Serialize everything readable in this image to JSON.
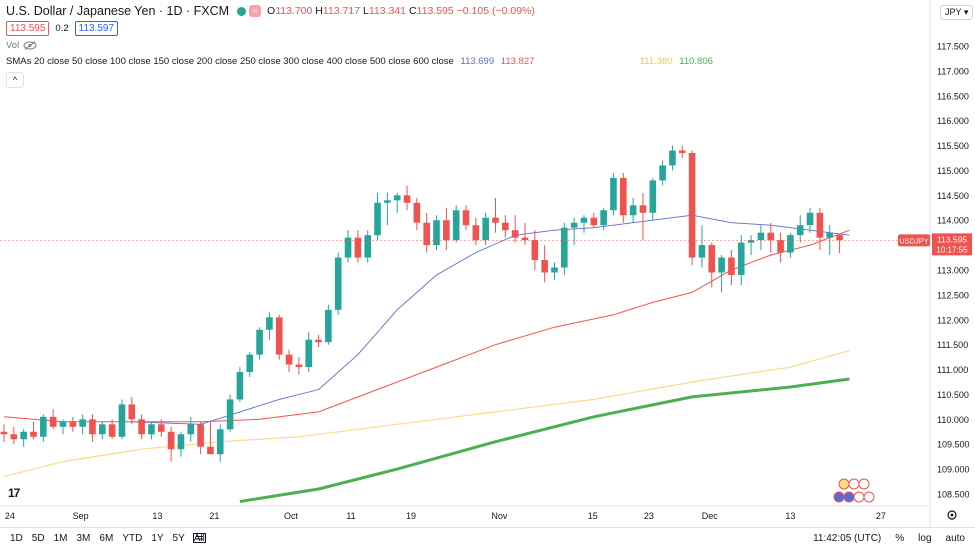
{
  "header": {
    "title": "U.S. Dollar / Japanese Yen · 1D · FXCM",
    "open_label": "O",
    "open": "113.700",
    "high_label": "H",
    "high": "113.717",
    "low_label": "L",
    "low": "113.341",
    "close_label": "C",
    "close": "113.595",
    "change": "−0.105 (−0.09%)",
    "sell_price": "113.595",
    "spread": "0.2",
    "buy_price": "113.597",
    "vol_label": "Vol",
    "sma_label": "SMAs 20 close 50 close 100 close 150 close 200 close 250 close 300 close 400 close 500 close 600 close",
    "sma_values": [
      "113.699",
      "113.827",
      "111.380",
      "110.806"
    ],
    "sma_colors": [
      "#5b6bd8",
      "#ef5350",
      "#f7dd86",
      "#4caf50"
    ],
    "collapse_symbol": "^",
    "currency": "JPY"
  },
  "price_axis": {
    "ticks": [
      "117.500",
      "117.000",
      "116.500",
      "116.000",
      "115.500",
      "115.000",
      "114.500",
      "114.000",
      "113.500",
      "113.000",
      "112.500",
      "112.000",
      "111.500",
      "111.000",
      "110.500",
      "110.000",
      "109.500",
      "109.000",
      "108.500"
    ],
    "symbol_tag": "USDJPY",
    "last_price": "113.595",
    "countdown": "10:17:55"
  },
  "time_axis": {
    "labels": [
      "24",
      "Sep",
      "13",
      "21",
      "Oct",
      "11",
      "19",
      "Nov",
      "15",
      "23",
      "Dec",
      "13",
      "27"
    ]
  },
  "bottom_bar": {
    "timeframes": [
      "1D",
      "5D",
      "1M",
      "3M",
      "6M",
      "YTD",
      "1Y",
      "5Y",
      "All"
    ],
    "time": "11:42:05 (UTC)",
    "percent": "%",
    "log": "log",
    "auto": "auto"
  },
  "logo_text": "17",
  "chart_data": {
    "type": "candlestick",
    "title": "U.S. Dollar / Japanese Yen · 1D · FXCM",
    "y_range": [
      108.3,
      117.75
    ],
    "candles": [
      {
        "o": 109.75,
        "h": 109.9,
        "l": 109.55,
        "c": 109.7
      },
      {
        "o": 109.7,
        "h": 109.85,
        "l": 109.5,
        "c": 109.6
      },
      {
        "o": 109.6,
        "h": 109.8,
        "l": 109.45,
        "c": 109.75
      },
      {
        "o": 109.75,
        "h": 109.95,
        "l": 109.6,
        "c": 109.65
      },
      {
        "o": 109.65,
        "h": 110.1,
        "l": 109.55,
        "c": 110.05
      },
      {
        "o": 110.05,
        "h": 110.2,
        "l": 109.8,
        "c": 109.85
      },
      {
        "o": 109.85,
        "h": 110.0,
        "l": 109.7,
        "c": 109.95
      },
      {
        "o": 109.95,
        "h": 110.05,
        "l": 109.75,
        "c": 109.85
      },
      {
        "o": 109.85,
        "h": 110.1,
        "l": 109.7,
        "c": 110.0
      },
      {
        "o": 110.0,
        "h": 110.1,
        "l": 109.55,
        "c": 109.7
      },
      {
        "o": 109.7,
        "h": 109.95,
        "l": 109.6,
        "c": 109.9
      },
      {
        "o": 109.9,
        "h": 110.0,
        "l": 109.6,
        "c": 109.65
      },
      {
        "o": 109.65,
        "h": 110.4,
        "l": 109.6,
        "c": 110.3
      },
      {
        "o": 110.3,
        "h": 110.45,
        "l": 109.9,
        "c": 110.0
      },
      {
        "o": 110.0,
        "h": 110.1,
        "l": 109.6,
        "c": 109.7
      },
      {
        "o": 109.7,
        "h": 109.95,
        "l": 109.6,
        "c": 109.9
      },
      {
        "o": 109.9,
        "h": 110.0,
        "l": 109.65,
        "c": 109.75
      },
      {
        "o": 109.75,
        "h": 109.85,
        "l": 109.15,
        "c": 109.4
      },
      {
        "o": 109.4,
        "h": 109.75,
        "l": 109.25,
        "c": 109.7
      },
      {
        "o": 109.7,
        "h": 110.05,
        "l": 109.55,
        "c": 109.9
      },
      {
        "o": 109.9,
        "h": 109.95,
        "l": 109.3,
        "c": 109.45
      },
      {
        "o": 109.45,
        "h": 109.95,
        "l": 109.35,
        "c": 109.3
      },
      {
        "o": 109.3,
        "h": 109.9,
        "l": 109.15,
        "c": 109.8
      },
      {
        "o": 109.8,
        "h": 110.5,
        "l": 109.75,
        "c": 110.4
      },
      {
        "o": 110.4,
        "h": 111.05,
        "l": 110.35,
        "c": 110.95
      },
      {
        "o": 110.95,
        "h": 111.35,
        "l": 110.85,
        "c": 111.3
      },
      {
        "o": 111.3,
        "h": 111.85,
        "l": 111.2,
        "c": 111.8
      },
      {
        "o": 111.8,
        "h": 112.15,
        "l": 111.6,
        "c": 112.05
      },
      {
        "o": 112.05,
        "h": 112.1,
        "l": 111.2,
        "c": 111.3
      },
      {
        "o": 111.3,
        "h": 111.4,
        "l": 110.95,
        "c": 111.1
      },
      {
        "o": 111.1,
        "h": 111.25,
        "l": 110.9,
        "c": 111.05
      },
      {
        "o": 111.05,
        "h": 111.75,
        "l": 110.95,
        "c": 111.6
      },
      {
        "o": 111.6,
        "h": 111.7,
        "l": 111.45,
        "c": 111.55
      },
      {
        "o": 111.55,
        "h": 112.3,
        "l": 111.5,
        "c": 112.2
      },
      {
        "o": 112.2,
        "h": 113.35,
        "l": 112.1,
        "c": 113.25
      },
      {
        "o": 113.25,
        "h": 113.8,
        "l": 113.15,
        "c": 113.65
      },
      {
        "o": 113.65,
        "h": 113.8,
        "l": 113.15,
        "c": 113.25
      },
      {
        "o": 113.25,
        "h": 113.8,
        "l": 113.15,
        "c": 113.7
      },
      {
        "o": 113.7,
        "h": 114.55,
        "l": 113.6,
        "c": 114.35
      },
      {
        "o": 114.35,
        "h": 114.55,
        "l": 113.9,
        "c": 114.4
      },
      {
        "o": 114.4,
        "h": 114.55,
        "l": 114.15,
        "c": 114.5
      },
      {
        "o": 114.5,
        "h": 114.7,
        "l": 114.2,
        "c": 114.35
      },
      {
        "o": 114.35,
        "h": 114.45,
        "l": 113.8,
        "c": 113.95
      },
      {
        "o": 113.95,
        "h": 114.15,
        "l": 113.35,
        "c": 113.5
      },
      {
        "o": 113.5,
        "h": 114.1,
        "l": 113.4,
        "c": 114.0
      },
      {
        "o": 114.0,
        "h": 114.25,
        "l": 113.4,
        "c": 113.6
      },
      {
        "o": 113.6,
        "h": 114.3,
        "l": 113.55,
        "c": 114.2
      },
      {
        "o": 114.2,
        "h": 114.3,
        "l": 113.8,
        "c": 113.9
      },
      {
        "o": 113.9,
        "h": 114.05,
        "l": 113.5,
        "c": 113.6
      },
      {
        "o": 113.6,
        "h": 114.15,
        "l": 113.5,
        "c": 114.05
      },
      {
        "o": 114.05,
        "h": 114.45,
        "l": 113.75,
        "c": 113.95
      },
      {
        "o": 113.95,
        "h": 114.1,
        "l": 113.65,
        "c": 113.8
      },
      {
        "o": 113.8,
        "h": 114.1,
        "l": 113.55,
        "c": 113.65
      },
      {
        "o": 113.65,
        "h": 113.95,
        "l": 113.5,
        "c": 113.6
      },
      {
        "o": 113.6,
        "h": 113.8,
        "l": 113.0,
        "c": 113.2
      },
      {
        "o": 113.2,
        "h": 113.5,
        "l": 112.75,
        "c": 112.95
      },
      {
        "o": 112.95,
        "h": 113.15,
        "l": 112.8,
        "c": 113.05
      },
      {
        "o": 113.05,
        "h": 113.95,
        "l": 112.9,
        "c": 113.85
      },
      {
        "o": 113.85,
        "h": 114.05,
        "l": 113.5,
        "c": 113.95
      },
      {
        "o": 113.95,
        "h": 114.1,
        "l": 113.75,
        "c": 114.05
      },
      {
        "o": 114.05,
        "h": 114.15,
        "l": 113.85,
        "c": 113.9
      },
      {
        "o": 113.9,
        "h": 114.25,
        "l": 113.8,
        "c": 114.2
      },
      {
        "o": 114.2,
        "h": 114.95,
        "l": 114.1,
        "c": 114.85
      },
      {
        "o": 114.85,
        "h": 114.95,
        "l": 113.95,
        "c": 114.1
      },
      {
        "o": 114.1,
        "h": 114.45,
        "l": 113.95,
        "c": 114.3
      },
      {
        "o": 114.3,
        "h": 114.55,
        "l": 113.6,
        "c": 114.15
      },
      {
        "o": 114.15,
        "h": 114.85,
        "l": 114.0,
        "c": 114.8
      },
      {
        "o": 114.8,
        "h": 115.2,
        "l": 114.7,
        "c": 115.1
      },
      {
        "o": 115.1,
        "h": 115.5,
        "l": 115.0,
        "c": 115.4
      },
      {
        "o": 115.4,
        "h": 115.5,
        "l": 115.25,
        "c": 115.35
      },
      {
        "o": 115.35,
        "h": 115.4,
        "l": 113.1,
        "c": 113.25
      },
      {
        "o": 113.25,
        "h": 113.9,
        "l": 113.05,
        "c": 113.5
      },
      {
        "o": 113.5,
        "h": 113.55,
        "l": 112.65,
        "c": 112.95
      },
      {
        "o": 112.95,
        "h": 113.3,
        "l": 112.55,
        "c": 113.25
      },
      {
        "o": 113.25,
        "h": 113.4,
        "l": 112.7,
        "c": 112.9
      },
      {
        "o": 112.9,
        "h": 113.7,
        "l": 112.7,
        "c": 113.55
      },
      {
        "o": 113.55,
        "h": 113.7,
        "l": 113.3,
        "c": 113.6
      },
      {
        "o": 113.6,
        "h": 113.9,
        "l": 113.4,
        "c": 113.75
      },
      {
        "o": 113.75,
        "h": 113.95,
        "l": 113.35,
        "c": 113.6
      },
      {
        "o": 113.6,
        "h": 113.75,
        "l": 113.15,
        "c": 113.35
      },
      {
        "o": 113.35,
        "h": 113.75,
        "l": 113.25,
        "c": 113.7
      },
      {
        "o": 113.7,
        "h": 114.1,
        "l": 113.55,
        "c": 113.9
      },
      {
        "o": 113.9,
        "h": 114.25,
        "l": 113.75,
        "c": 114.15
      },
      {
        "o": 114.15,
        "h": 114.25,
        "l": 113.4,
        "c": 113.65
      },
      {
        "o": 113.65,
        "h": 113.9,
        "l": 113.3,
        "c": 113.75
      },
      {
        "o": 113.7,
        "h": 113.72,
        "l": 113.34,
        "c": 113.6
      }
    ],
    "sma_series": [
      {
        "name": "SMA 20",
        "color": "#5b6bd8",
        "points": [
          [
            13,
            109.95
          ],
          [
            20,
            109.9
          ],
          [
            24,
            110.15
          ],
          [
            28,
            110.4
          ],
          [
            32,
            110.6
          ],
          [
            36,
            111.3
          ],
          [
            40,
            112.2
          ],
          [
            44,
            112.9
          ],
          [
            48,
            113.35
          ],
          [
            52,
            113.7
          ],
          [
            56,
            113.8
          ],
          [
            60,
            113.85
          ],
          [
            64,
            113.95
          ],
          [
            68,
            114.05
          ],
          [
            70,
            114.1
          ],
          [
            74,
            113.95
          ],
          [
            78,
            113.9
          ],
          [
            82,
            113.8
          ],
          [
            86,
            113.7
          ]
        ]
      },
      {
        "name": "SMA 50",
        "color": "#ef5350",
        "points": [
          [
            0,
            110.05
          ],
          [
            6,
            109.95
          ],
          [
            12,
            109.95
          ],
          [
            20,
            109.95
          ],
          [
            26,
            110.0
          ],
          [
            32,
            110.15
          ],
          [
            38,
            110.6
          ],
          [
            44,
            111.05
          ],
          [
            50,
            111.5
          ],
          [
            56,
            111.85
          ],
          [
            62,
            112.1
          ],
          [
            66,
            112.35
          ],
          [
            70,
            112.55
          ],
          [
            74,
            113.0
          ],
          [
            78,
            113.3
          ],
          [
            82,
            113.5
          ],
          [
            86,
            113.8
          ]
        ]
      },
      {
        "name": "SMA 100",
        "color": "#f7dd86",
        "points": [
          [
            0,
            108.85
          ],
          [
            6,
            109.15
          ],
          [
            14,
            109.4
          ],
          [
            22,
            109.55
          ],
          [
            30,
            109.65
          ],
          [
            40,
            109.9
          ],
          [
            50,
            110.15
          ],
          [
            60,
            110.4
          ],
          [
            70,
            110.75
          ],
          [
            80,
            111.05
          ],
          [
            86,
            111.38
          ]
        ]
      },
      {
        "name": "SMA 200",
        "color": "#4caf50",
        "points": [
          [
            24,
            108.35
          ],
          [
            32,
            108.6
          ],
          [
            40,
            109.0
          ],
          [
            50,
            109.55
          ],
          [
            60,
            110.05
          ],
          [
            70,
            110.45
          ],
          [
            80,
            110.65
          ],
          [
            86,
            110.81
          ]
        ]
      }
    ]
  }
}
